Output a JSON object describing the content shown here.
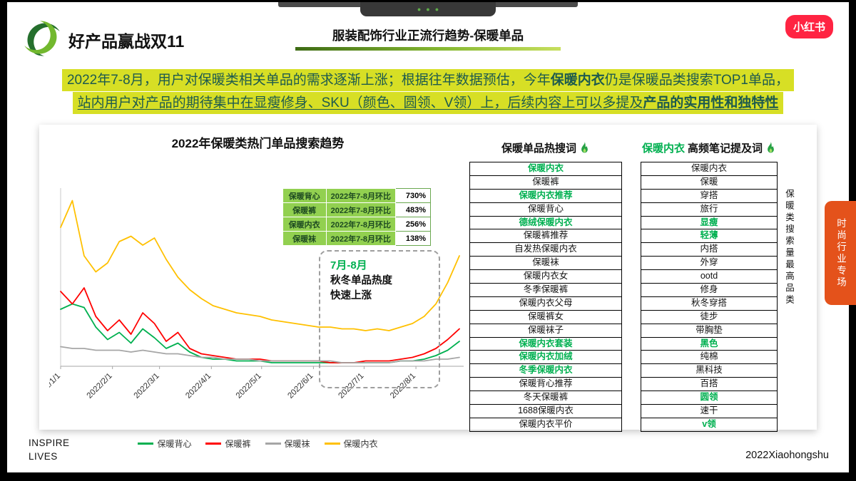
{
  "chrome": {
    "dots": "●●●"
  },
  "header": {
    "title": "好产品赢战双11",
    "subtitle": "服装配饰行业正流行趋势-保暖单品",
    "brand": "小红书"
  },
  "insight": {
    "line1_pre": "2022年7-8月，用户对保暖类相关单品的需求逐渐上涨；根据往年数据预估，今年",
    "line1_bold": "保暖内衣",
    "line1_post": "仍是保暖品类搜索TOP1单品，",
    "line2_pre": "站内用户对产品的期待集中在显瘦修身、SKU（颜色、圆领、V领）上，后续内容上可以多提及",
    "line2_bold": "产品的实用性和独特性"
  },
  "chart_data": {
    "type": "line",
    "title": "2022年保暖类热门单品搜索趋势",
    "xlabel": "",
    "ylabel": "",
    "ylim": [
      0,
      100
    ],
    "grid": false,
    "legend_position": "bottom",
    "x_ticks": [
      {
        "label": "2022/1/1",
        "f": 0.0
      },
      {
        "label": "2022/2/1",
        "f": 0.13
      },
      {
        "label": "2022/3/1",
        "f": 0.248
      },
      {
        "label": "2022/4/1",
        "f": 0.378
      },
      {
        "label": "2022/5/1",
        "f": 0.504
      },
      {
        "label": "2022/6/1",
        "f": 0.634
      },
      {
        "label": "2022/7/1",
        "f": 0.761
      },
      {
        "label": "2022/8/1",
        "f": 0.891
      }
    ],
    "series": [
      {
        "name": "保暖背心",
        "color": "#00b050",
        "values": [
          32,
          35,
          33,
          22,
          15,
          19,
          13,
          21,
          16,
          10,
          13,
          8,
          5,
          4,
          4,
          3,
          3,
          3,
          2,
          2,
          2,
          2,
          2,
          2,
          2,
          2,
          2,
          2,
          2,
          3,
          3,
          4,
          6,
          9,
          14
        ]
      },
      {
        "name": "保暖裤",
        "color": "#ff0000",
        "values": [
          42,
          35,
          44,
          28,
          20,
          26,
          18,
          30,
          24,
          14,
          19,
          10,
          7,
          6,
          5,
          4,
          4,
          4,
          3,
          3,
          3,
          3,
          3,
          2,
          2,
          2,
          3,
          3,
          3,
          4,
          5,
          7,
          10,
          15,
          21
        ]
      },
      {
        "name": "保暖袜",
        "color": "#a6a6a6",
        "values": [
          11,
          10,
          10,
          9,
          9,
          9,
          8,
          9,
          8,
          7,
          7,
          6,
          5,
          5,
          4,
          4,
          4,
          3,
          3,
          3,
          3,
          3,
          3,
          3,
          2,
          2,
          2,
          2,
          2,
          3,
          3,
          3,
          4,
          4,
          5
        ]
      },
      {
        "name": "保暖内衣",
        "color": "#ffc000",
        "values": [
          78,
          93,
          62,
          53,
          58,
          70,
          73,
          68,
          72,
          60,
          50,
          43,
          38,
          34,
          32,
          30,
          29,
          28,
          26,
          25,
          24,
          23,
          22,
          22,
          21,
          21,
          20,
          21,
          20,
          22,
          24,
          28,
          35,
          47,
          62
        ]
      }
    ],
    "comparison_table": [
      {
        "name": "保暖背心",
        "period": "2022年7-8月环比",
        "value": "730%"
      },
      {
        "name": "保暖裤",
        "period": "2022年7-8月环比",
        "value": "483%"
      },
      {
        "name": "保暖内衣",
        "period": "2022年7-8月环比",
        "value": "256%"
      },
      {
        "name": "保暖袜",
        "period": "2022年7-8月环比",
        "value": "138%"
      }
    ],
    "annotation": {
      "highlight": "7月-8月",
      "line1": "秋冬单品热度",
      "line2": "快速上涨"
    }
  },
  "hot_search": {
    "title": "保暖单品热搜词",
    "items": [
      {
        "text": "保暖内衣",
        "hot": true
      },
      {
        "text": "保暖裤",
        "hot": false
      },
      {
        "text": "保暖内衣推荐",
        "hot": true
      },
      {
        "text": "保暖背心",
        "hot": false
      },
      {
        "text": "德绒保暖内衣",
        "hot": true
      },
      {
        "text": "保暖裤推荐",
        "hot": false
      },
      {
        "text": "自发热保暖内衣",
        "hot": false
      },
      {
        "text": "保暖袜",
        "hot": false
      },
      {
        "text": "保暖内衣女",
        "hot": false
      },
      {
        "text": "冬季保暖裤",
        "hot": false
      },
      {
        "text": "保暖内衣父母",
        "hot": false
      },
      {
        "text": "保暖裤女",
        "hot": false
      },
      {
        "text": "保暖袜子",
        "hot": false
      },
      {
        "text": "保暖内衣套装",
        "hot": true
      },
      {
        "text": "保暖内衣加绒",
        "hot": true
      },
      {
        "text": "冬季保暖内衣",
        "hot": true
      },
      {
        "text": "保暖背心推荐",
        "hot": false
      },
      {
        "text": "冬天保暖裤",
        "hot": false
      },
      {
        "text": "1688保暖内衣",
        "hot": false
      },
      {
        "text": "保暖内衣平价",
        "hot": false
      }
    ]
  },
  "mention": {
    "title_highlight": "保暖内衣",
    "title_rest": "高频笔记提及词",
    "side_note": "保暖类搜索量最高品类",
    "items": [
      {
        "text": "保暖内衣",
        "hot": false
      },
      {
        "text": "保暖",
        "hot": false
      },
      {
        "text": "穿搭",
        "hot": false
      },
      {
        "text": "旅行",
        "hot": false
      },
      {
        "text": "显瘦",
        "hot": true
      },
      {
        "text": "轻薄",
        "hot": true
      },
      {
        "text": "内搭",
        "hot": false
      },
      {
        "text": "外穿",
        "hot": false
      },
      {
        "text": "ootd",
        "hot": false
      },
      {
        "text": "修身",
        "hot": false
      },
      {
        "text": "秋冬穿搭",
        "hot": false
      },
      {
        "text": "徒步",
        "hot": false
      },
      {
        "text": "带胸垫",
        "hot": false
      },
      {
        "text": "黑色",
        "hot": true
      },
      {
        "text": "纯棉",
        "hot": false
      },
      {
        "text": "黑科技",
        "hot": false
      },
      {
        "text": "百搭",
        "hot": false
      },
      {
        "text": "圆领",
        "hot": true
      },
      {
        "text": "速干",
        "hot": false
      },
      {
        "text": "v领",
        "hot": true
      }
    ]
  },
  "side_tab": "时尚行业专场",
  "footer": {
    "left1": "INSPIRE",
    "left2": "LIVES",
    "right": "2022Xiaohongshu"
  }
}
